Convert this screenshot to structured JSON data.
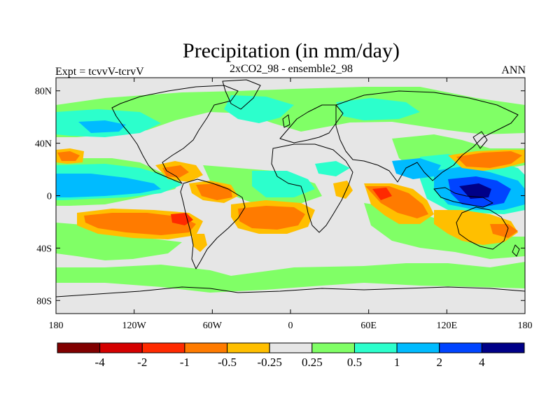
{
  "title": "Precipitation (in mm/day)",
  "left_label": "Expt = tcvvV-tcrvV",
  "center_label": "2xCO2_98 - ensemble2_98",
  "right_label": "ANN",
  "lat_ticks": [
    {
      "label": "80N",
      "lat": 80
    },
    {
      "label": "40N",
      "lat": 40
    },
    {
      "label": "0",
      "lat": 0
    },
    {
      "label": "40S",
      "lat": -40
    },
    {
      "label": "80S",
      "lat": -80
    }
  ],
  "lon_ticks": [
    {
      "label": "180",
      "lon": -180
    },
    {
      "label": "120W",
      "lon": -120
    },
    {
      "label": "60W",
      "lon": -60
    },
    {
      "label": "0",
      "lon": 0
    },
    {
      "label": "60E",
      "lon": 60
    },
    {
      "label": "120E",
      "lon": 120
    },
    {
      "label": "180",
      "lon": 180
    }
  ],
  "colorbar": {
    "colors": [
      "#800000",
      "#d40000",
      "#ff2a00",
      "#ff7b00",
      "#ffbf00",
      "#e6e6e6",
      "#80ff66",
      "#2cffcc",
      "#00bbff",
      "#0044ff",
      "#000088"
    ],
    "labels": [
      "-4",
      "-2",
      "-1",
      "-0.5",
      "-0.25",
      "0.25",
      "0.5",
      "1",
      "2",
      "4"
    ]
  },
  "colors": {
    "ocean_bg": "#e6e6e6",
    "coast": "#000000"
  }
}
